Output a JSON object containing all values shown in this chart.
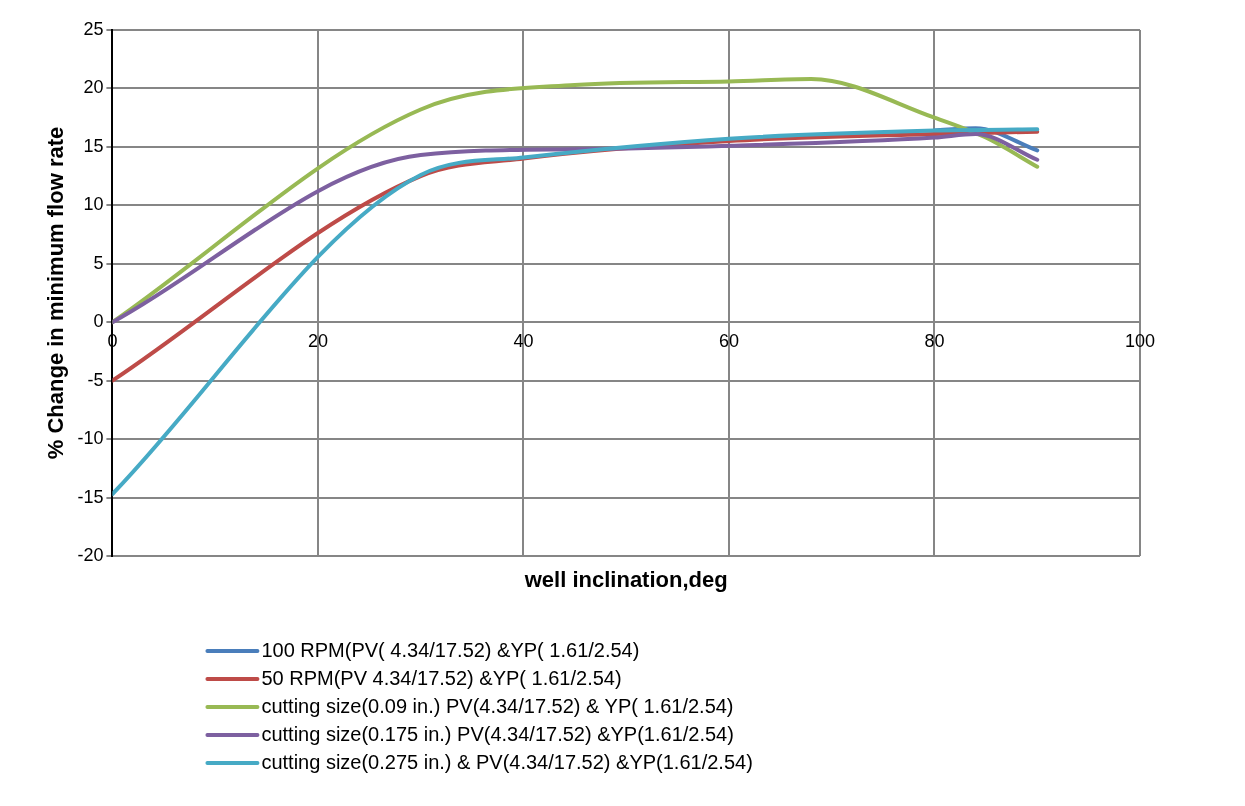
{
  "chart_data": {
    "type": "line",
    "xlabel": "well inclination,deg",
    "ylabel": "% Change in minimum flow rate",
    "xlim": [
      0,
      100
    ],
    "xticks": [
      0,
      20,
      40,
      60,
      80,
      100
    ],
    "ylim": [
      -20,
      25
    ],
    "yticks": [
      -20,
      -15,
      -10,
      -5,
      0,
      5,
      10,
      15,
      20,
      25
    ],
    "grid": true,
    "legend": "bottom",
    "marker": "none",
    "series": [
      {
        "name": "100 RPM(PV( 4.34/17.52) &YP( 1.61/2.54)",
        "color": "#4a7ebb",
        "x": [
          80,
          84,
          90
        ],
        "values": [
          16.4,
          16.6,
          14.7
        ]
      },
      {
        "name": "50 RPM(PV 4.34/17.52) &YP( 1.61/2.54)",
        "color": "#be4b48",
        "x": [
          0,
          30,
          40,
          60,
          80,
          90
        ],
        "values": [
          -5,
          12.5,
          14,
          15.5,
          16.1,
          16.3
        ]
      },
      {
        "name": "cutting size(0.09 in.) PV(4.34/17.52) & YP( 1.61/2.54)",
        "color": "#98b954",
        "x": [
          0,
          30,
          45,
          60,
          68,
          80,
          85,
          90
        ],
        "values": [
          0,
          18.2,
          20.3,
          20.6,
          20.8,
          17.5,
          15.8,
          13.3
        ]
      },
      {
        "name": "cutting size(0.175 in.) PV(4.34/17.52) &YP(1.61/2.54)",
        "color": "#7d60a0",
        "x": [
          0,
          30,
          45,
          60,
          80,
          84,
          90
        ],
        "values": [
          0,
          14.3,
          14.8,
          15.1,
          15.8,
          16.1,
          13.9
        ]
      },
      {
        "name": "cutting size(0.275 in.) & PV(4.34/17.52) &YP(1.61/2.54)",
        "color": "#46aac5",
        "x": [
          0,
          30,
          40,
          60,
          80,
          90
        ],
        "values": [
          -14.7,
          12.6,
          14.1,
          15.7,
          16.4,
          16.5
        ]
      }
    ]
  }
}
